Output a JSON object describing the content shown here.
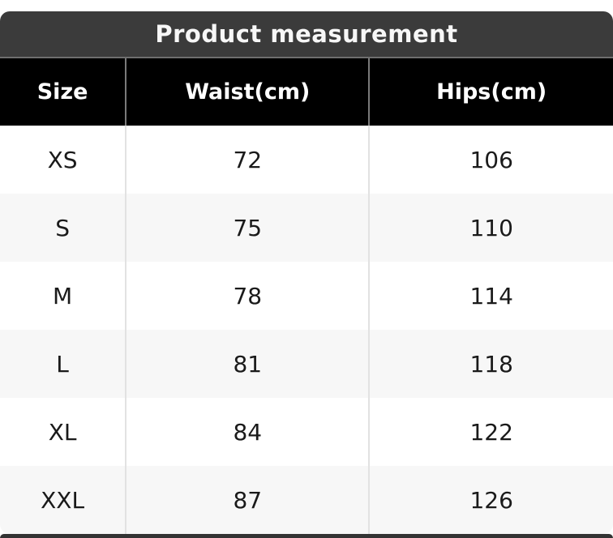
{
  "chart_data": {
    "type": "table",
    "title": "Product measurement",
    "columns": [
      "Size",
      "Waist(cm)",
      "Hips(cm)"
    ],
    "rows": [
      [
        "XS",
        "72",
        "106"
      ],
      [
        "S",
        "75",
        "110"
      ],
      [
        "M",
        "78",
        "114"
      ],
      [
        "L",
        "81",
        "118"
      ],
      [
        "XL",
        "84",
        "122"
      ],
      [
        "XXL",
        "87",
        "126"
      ]
    ],
    "layout_hints": {
      "alternating_rows": true,
      "column_alignment": "center"
    }
  },
  "colors": {
    "title_bar_bg": "#3b3b3b",
    "title_divider": "#6e6e6e",
    "header_bg": "#000000",
    "header_sep": "#7a7a7a",
    "alt_row_bg": "#f7f7f7",
    "body_sep": "#e2e2e2",
    "body_text": "#1a1a1a",
    "bottom_edge": "#333333"
  }
}
